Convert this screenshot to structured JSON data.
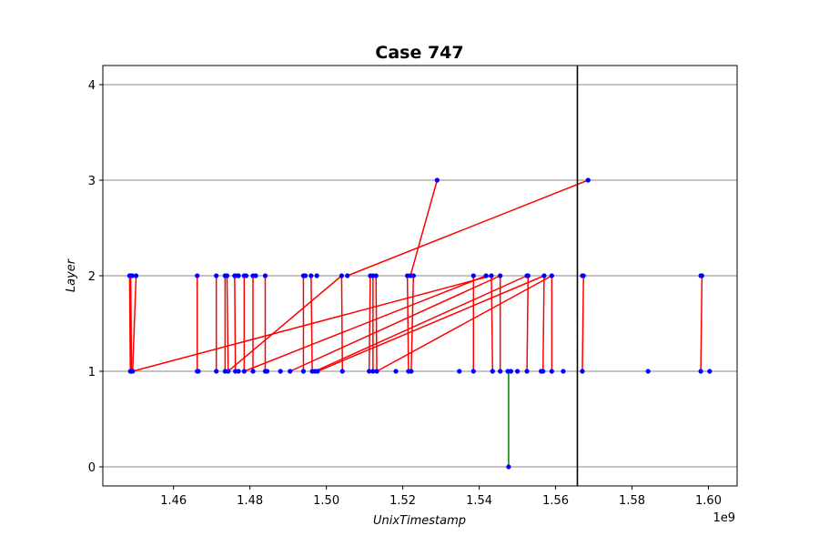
{
  "chart_data": {
    "type": "scatter",
    "title": "Case 747",
    "xlabel": "UnixTimestamp",
    "ylabel": "Layer",
    "x_offset_label": "1e9",
    "xlim": [
      1.4415,
      1.6075
    ],
    "ylim": [
      -0.2,
      4.2
    ],
    "x_ticks": [
      1.46,
      1.48,
      1.5,
      1.52,
      1.54,
      1.56,
      1.58,
      1.6
    ],
    "x_tick_labels": [
      "1.46",
      "1.48",
      "1.50",
      "1.52",
      "1.54",
      "1.56",
      "1.58",
      "1.60"
    ],
    "y_ticks": [
      0,
      1,
      2,
      3,
      4
    ],
    "y_tick_labels": [
      "0",
      "1",
      "2",
      "3",
      "4"
    ],
    "grid": "horizontal",
    "vline_x": 1.5657,
    "colors": {
      "points": "#0000ff",
      "red_edges": "#ff0000",
      "green_edges": "#008000",
      "vline": "#000000",
      "grid": "#b0b0b0"
    },
    "points": [
      {
        "x": 1.4485,
        "y": 2
      },
      {
        "x": 1.4488,
        "y": 2
      },
      {
        "x": 1.4492,
        "y": 2
      },
      {
        "x": 1.4502,
        "y": 2
      },
      {
        "x": 1.4487,
        "y": 1
      },
      {
        "x": 1.449,
        "y": 1
      },
      {
        "x": 1.4493,
        "y": 1
      },
      {
        "x": 1.4662,
        "y": 2
      },
      {
        "x": 1.4662,
        "y": 1
      },
      {
        "x": 1.4665,
        "y": 1
      },
      {
        "x": 1.4712,
        "y": 2
      },
      {
        "x": 1.4712,
        "y": 1
      },
      {
        "x": 1.4735,
        "y": 2
      },
      {
        "x": 1.474,
        "y": 2
      },
      {
        "x": 1.4735,
        "y": 1
      },
      {
        "x": 1.4743,
        "y": 1
      },
      {
        "x": 1.476,
        "y": 2
      },
      {
        "x": 1.4763,
        "y": 2
      },
      {
        "x": 1.477,
        "y": 2
      },
      {
        "x": 1.4762,
        "y": 1
      },
      {
        "x": 1.477,
        "y": 1
      },
      {
        "x": 1.4785,
        "y": 2
      },
      {
        "x": 1.479,
        "y": 2
      },
      {
        "x": 1.4785,
        "y": 1
      },
      {
        "x": 1.4808,
        "y": 2
      },
      {
        "x": 1.4815,
        "y": 2
      },
      {
        "x": 1.4808,
        "y": 1
      },
      {
        "x": 1.484,
        "y": 2
      },
      {
        "x": 1.484,
        "y": 1
      },
      {
        "x": 1.4845,
        "y": 1
      },
      {
        "x": 1.488,
        "y": 1
      },
      {
        "x": 1.4905,
        "y": 1
      },
      {
        "x": 1.494,
        "y": 2
      },
      {
        "x": 1.4945,
        "y": 2
      },
      {
        "x": 1.494,
        "y": 1
      },
      {
        "x": 1.496,
        "y": 2
      },
      {
        "x": 1.4963,
        "y": 1
      },
      {
        "x": 1.497,
        "y": 1
      },
      {
        "x": 1.4975,
        "y": 2
      },
      {
        "x": 1.4977,
        "y": 1
      },
      {
        "x": 1.504,
        "y": 2
      },
      {
        "x": 1.5055,
        "y": 2
      },
      {
        "x": 1.5042,
        "y": 1
      },
      {
        "x": 1.5112,
        "y": 1
      },
      {
        "x": 1.5115,
        "y": 2
      },
      {
        "x": 1.5122,
        "y": 2
      },
      {
        "x": 1.5122,
        "y": 1
      },
      {
        "x": 1.513,
        "y": 2
      },
      {
        "x": 1.5132,
        "y": 1
      },
      {
        "x": 1.5182,
        "y": 1
      },
      {
        "x": 1.5212,
        "y": 2
      },
      {
        "x": 1.522,
        "y": 2
      },
      {
        "x": 1.5228,
        "y": 2
      },
      {
        "x": 1.5215,
        "y": 1
      },
      {
        "x": 1.5222,
        "y": 1
      },
      {
        "x": 1.529,
        "y": 3
      },
      {
        "x": 1.5348,
        "y": 1
      },
      {
        "x": 1.5385,
        "y": 2
      },
      {
        "x": 1.5385,
        "y": 1
      },
      {
        "x": 1.5418,
        "y": 2
      },
      {
        "x": 1.5432,
        "y": 2
      },
      {
        "x": 1.5435,
        "y": 1
      },
      {
        "x": 1.5455,
        "y": 2
      },
      {
        "x": 1.5455,
        "y": 1
      },
      {
        "x": 1.5475,
        "y": 1
      },
      {
        "x": 1.5483,
        "y": 1
      },
      {
        "x": 1.5477,
        "y": 0
      },
      {
        "x": 1.55,
        "y": 1
      },
      {
        "x": 1.5525,
        "y": 2
      },
      {
        "x": 1.5528,
        "y": 2
      },
      {
        "x": 1.5525,
        "y": 1
      },
      {
        "x": 1.5562,
        "y": 1
      },
      {
        "x": 1.5567,
        "y": 1
      },
      {
        "x": 1.557,
        "y": 2
      },
      {
        "x": 1.559,
        "y": 2
      },
      {
        "x": 1.559,
        "y": 1
      },
      {
        "x": 1.562,
        "y": 1
      },
      {
        "x": 1.567,
        "y": 2
      },
      {
        "x": 1.5673,
        "y": 2
      },
      {
        "x": 1.567,
        "y": 1
      },
      {
        "x": 1.5685,
        "y": 3
      },
      {
        "x": 1.5842,
        "y": 1
      },
      {
        "x": 1.598,
        "y": 2
      },
      {
        "x": 1.5983,
        "y": 2
      },
      {
        "x": 1.598,
        "y": 1
      },
      {
        "x": 1.6003,
        "y": 1
      }
    ],
    "edges": [
      {
        "x1": 1.4485,
        "y1": 2,
        "x2": 1.4487,
        "y2": 1,
        "color": "red"
      },
      {
        "x1": 1.4488,
        "y1": 2,
        "x2": 1.449,
        "y2": 1,
        "color": "red"
      },
      {
        "x1": 1.4502,
        "y1": 2,
        "x2": 1.4493,
        "y2": 1,
        "color": "red"
      },
      {
        "x1": 1.4493,
        "y1": 1,
        "x2": 1.5432,
        "y2": 2,
        "color": "red"
      },
      {
        "x1": 1.4662,
        "y1": 2,
        "x2": 1.4662,
        "y2": 1,
        "color": "red"
      },
      {
        "x1": 1.4712,
        "y1": 2,
        "x2": 1.4712,
        "y2": 1,
        "color": "red"
      },
      {
        "x1": 1.4735,
        "y1": 2,
        "x2": 1.4735,
        "y2": 1,
        "color": "red"
      },
      {
        "x1": 1.474,
        "y1": 2,
        "x2": 1.4743,
        "y2": 1,
        "color": "red"
      },
      {
        "x1": 1.4743,
        "y1": 1,
        "x2": 1.504,
        "y2": 2,
        "color": "red"
      },
      {
        "x1": 1.476,
        "y1": 2,
        "x2": 1.4762,
        "y2": 1,
        "color": "red"
      },
      {
        "x1": 1.4785,
        "y1": 2,
        "x2": 1.4785,
        "y2": 1,
        "color": "red"
      },
      {
        "x1": 1.4785,
        "y1": 1,
        "x2": 1.5418,
        "y2": 2,
        "color": "red"
      },
      {
        "x1": 1.4808,
        "y1": 2,
        "x2": 1.4808,
        "y2": 1,
        "color": "red"
      },
      {
        "x1": 1.484,
        "y1": 2,
        "x2": 1.484,
        "y2": 1,
        "color": "red"
      },
      {
        "x1": 1.4905,
        "y1": 1,
        "x2": 1.5455,
        "y2": 2,
        "color": "red"
      },
      {
        "x1": 1.494,
        "y1": 2,
        "x2": 1.494,
        "y2": 1,
        "color": "red"
      },
      {
        "x1": 1.496,
        "y1": 2,
        "x2": 1.4963,
        "y2": 1,
        "color": "red"
      },
      {
        "x1": 1.497,
        "y1": 1,
        "x2": 1.5525,
        "y2": 2,
        "color": "red"
      },
      {
        "x1": 1.4977,
        "y1": 1,
        "x2": 1.557,
        "y2": 2,
        "color": "red"
      },
      {
        "x1": 1.504,
        "y1": 2,
        "x2": 1.5042,
        "y2": 1,
        "color": "red"
      },
      {
        "x1": 1.5055,
        "y1": 2,
        "x2": 1.5685,
        "y2": 3,
        "color": "red"
      },
      {
        "x1": 1.5115,
        "y1": 2,
        "x2": 1.5112,
        "y2": 1,
        "color": "red"
      },
      {
        "x1": 1.5122,
        "y1": 2,
        "x2": 1.5122,
        "y2": 1,
        "color": "red"
      },
      {
        "x1": 1.513,
        "y1": 2,
        "x2": 1.5132,
        "y2": 1,
        "color": "red"
      },
      {
        "x1": 1.5132,
        "y1": 1,
        "x2": 1.559,
        "y2": 2,
        "color": "red"
      },
      {
        "x1": 1.5212,
        "y1": 2,
        "x2": 1.5215,
        "y2": 1,
        "color": "red"
      },
      {
        "x1": 1.5228,
        "y1": 2,
        "x2": 1.5222,
        "y2": 1,
        "color": "red"
      },
      {
        "x1": 1.522,
        "y1": 2,
        "x2": 1.529,
        "y2": 3,
        "color": "red"
      },
      {
        "x1": 1.5385,
        "y1": 2,
        "x2": 1.5385,
        "y2": 1,
        "color": "red"
      },
      {
        "x1": 1.5432,
        "y1": 2,
        "x2": 1.5435,
        "y2": 1,
        "color": "red"
      },
      {
        "x1": 1.5455,
        "y1": 2,
        "x2": 1.5455,
        "y2": 1,
        "color": "red"
      },
      {
        "x1": 1.5477,
        "y1": 1,
        "x2": 1.5477,
        "y2": 0,
        "color": "green"
      },
      {
        "x1": 1.5528,
        "y1": 2,
        "x2": 1.5525,
        "y2": 1,
        "color": "red"
      },
      {
        "x1": 1.557,
        "y1": 2,
        "x2": 1.5567,
        "y2": 1,
        "color": "red"
      },
      {
        "x1": 1.559,
        "y1": 2,
        "x2": 1.559,
        "y2": 1,
        "color": "red"
      },
      {
        "x1": 1.5673,
        "y1": 2,
        "x2": 1.567,
        "y2": 1,
        "color": "red"
      },
      {
        "x1": 1.5983,
        "y1": 2,
        "x2": 1.598,
        "y2": 1,
        "color": "red"
      }
    ]
  }
}
